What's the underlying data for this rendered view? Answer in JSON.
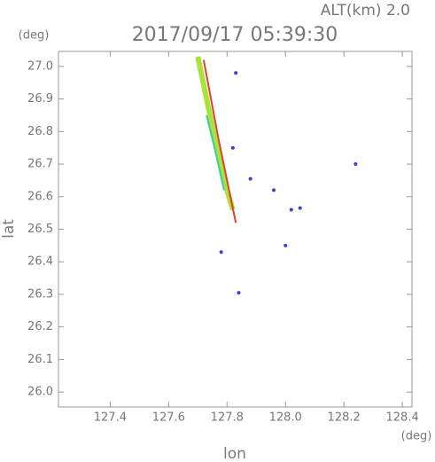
{
  "chart_data": {
    "type": "scatter",
    "title": "2017/09/17 05:39:30",
    "subtitle": "ALT(km) 2.0",
    "y_unit": "(deg)",
    "x_unit": "(deg)",
    "xlabel": "lon",
    "ylabel": "lat",
    "xlim": [
      127.223,
      128.433
    ],
    "ylim": [
      25.954,
      27.046
    ],
    "xticks": [
      127.4,
      127.6,
      127.8,
      {
        "value": 128,
        "label": "128.0"
      },
      128.2,
      128.4
    ],
    "yticks": [
      {
        "value": 26,
        "label": "26.0"
      },
      26.1,
      26.2,
      26.3,
      26.4,
      26.5,
      26.6,
      26.7,
      26.8,
      26.9,
      {
        "value": 27,
        "label": "27.0"
      }
    ],
    "series": [
      {
        "kind": "line",
        "color": "#a8e23a",
        "x": [
          127.7,
          127.73,
          127.76,
          127.79,
          127.82
        ],
        "y": [
          27.03,
          26.9,
          26.77,
          26.65,
          26.56
        ]
      },
      {
        "kind": "line",
        "color": "#33d0a0",
        "x": [
          127.73,
          127.76,
          127.79
        ],
        "y": [
          26.85,
          26.74,
          26.62
        ]
      },
      {
        "kind": "line",
        "color": "#e0402a",
        "x": [
          127.72,
          127.77,
          127.83
        ],
        "y": [
          27.02,
          26.78,
          26.52
        ]
      },
      {
        "kind": "scatter",
        "color": "#3344cc",
        "x": [
          128.24,
          128.05,
          128.02,
          127.88,
          127.78,
          127.84,
          128.0,
          127.82,
          127.83,
          127.96
        ],
        "y": [
          26.7,
          26.565,
          26.56,
          26.655,
          26.43,
          26.305,
          26.45,
          26.75,
          26.98,
          26.62
        ]
      }
    ]
  }
}
